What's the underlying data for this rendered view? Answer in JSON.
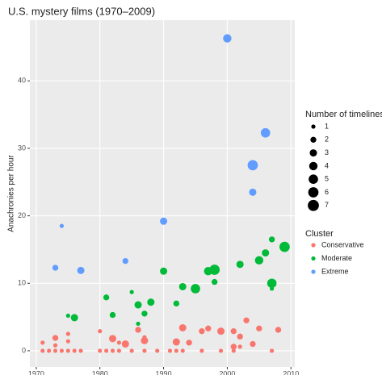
{
  "chart_data": {
    "type": "scatter",
    "title": "U.S. mystery films (1970–2009)",
    "y_label": "Anachronies per hour",
    "xlim": [
      1969,
      2010.6
    ],
    "ylim": [
      -2.4,
      49
    ],
    "xticks": [
      1970,
      1980,
      1990,
      2000,
      2010
    ],
    "yticks": [
      0,
      10,
      20,
      30,
      40
    ],
    "grid": true,
    "size_legend": {
      "title": "Number of timelines",
      "values": [
        1,
        2,
        3,
        4,
        5,
        6,
        7
      ]
    },
    "legend_title": "Cluster",
    "series": [
      {
        "name": "Conservative",
        "color": "#f8766d",
        "x": [
          1971,
          1972,
          1973,
          1974,
          1975,
          1976,
          1977,
          1980,
          1981,
          1982,
          1983,
          1985,
          1987,
          1989,
          1991,
          1992,
          1993,
          1996,
          1999,
          2001,
          2007,
          1971,
          1973,
          1973,
          1975,
          1975,
          1980,
          1982,
          1983,
          1984,
          1986,
          1987,
          1987,
          1992,
          1993,
          1994,
          1996,
          1997,
          1999,
          2001,
          2001,
          2002,
          2002,
          2003,
          2004,
          2005,
          2008
        ],
        "values": [
          0,
          0,
          0,
          0,
          0,
          0,
          0,
          0,
          0,
          0,
          0,
          0,
          0,
          0,
          0,
          0,
          0,
          0,
          0,
          0,
          0,
          1.2,
          1.9,
          0.8,
          2.5,
          1.4,
          2.9,
          1.8,
          1.2,
          1.0,
          3.1,
          1.5,
          2.0,
          1.3,
          3.4,
          1.2,
          2.9,
          3.3,
          2.9,
          2.9,
          0.6,
          2.1,
          0.6,
          4.5,
          1.0,
          3.3,
          3.1
        ],
        "sizes": [
          1,
          1,
          1,
          1,
          1,
          1,
          1,
          1,
          1,
          1,
          1,
          1,
          1,
          1,
          1,
          1,
          1,
          1,
          1,
          1,
          1,
          1,
          2,
          1,
          1,
          1,
          1,
          3,
          1,
          3,
          2,
          3,
          1,
          3,
          3,
          2,
          2,
          2,
          3,
          2,
          2,
          2,
          1,
          2,
          2,
          2,
          2
        ]
      },
      {
        "name": "Moderate",
        "color": "#00ba38",
        "x": [
          2009,
          2007,
          2006,
          2005,
          2002,
          2007,
          2007,
          1998,
          1997,
          1998,
          1995,
          1993,
          1990,
          1992,
          1988,
          1986,
          1987,
          1986,
          1985,
          1982,
          1981,
          1976,
          1975
        ],
        "values": [
          15.4,
          16.5,
          14.5,
          13.4,
          12.8,
          10,
          9.2,
          12.0,
          11.8,
          10.2,
          9.2,
          9.5,
          11.8,
          7.0,
          7.2,
          6.8,
          5.5,
          4.0,
          8.7,
          5.3,
          7.9,
          4.9,
          5.2
        ],
        "sizes": [
          6,
          2,
          3,
          4,
          3,
          5,
          1,
          6,
          4,
          2,
          5,
          3,
          3,
          2,
          3,
          3,
          2,
          1,
          1,
          2,
          2,
          3,
          1
        ]
      },
      {
        "name": "Extreme",
        "color": "#619cff",
        "x": [
          2000,
          2006,
          2004,
          2004,
          1990,
          1974,
          1973,
          1977,
          1984
        ],
        "values": [
          46.3,
          32.3,
          27.5,
          23.5,
          19.2,
          18.5,
          12.3,
          11.9,
          13.3
        ],
        "sizes": [
          4,
          5,
          6,
          3,
          3,
          1,
          2,
          3,
          2
        ]
      }
    ]
  }
}
